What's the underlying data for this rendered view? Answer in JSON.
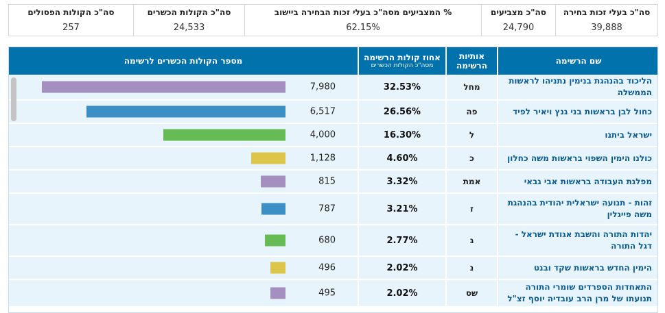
{
  "summary": [
    {
      "label": "סה\"כ בעלי זכות בחירה",
      "value": "39,888"
    },
    {
      "label": "סה\"כ מצביעים",
      "value": "24,790"
    },
    {
      "label": "% המצביעים מסה\"כ בעלי זכות הבחירה ביישוב",
      "value": "62.15%"
    },
    {
      "label": "סה\"כ הקולות הכשרים",
      "value": "24,533"
    },
    {
      "label": "סה\"כ הקולות הפסולים",
      "value": "257"
    }
  ],
  "table": {
    "headers": {
      "name": "שם הרשימה",
      "letters": "אותיות הרשימה",
      "percent": "אחוז קולות הרשימה",
      "percent_sub": "מסה\"כ הקולות הכשרים",
      "votes": "מספר הקולות הכשרים לרשימה"
    },
    "max_votes": 7980,
    "rows": [
      {
        "name": "הליכוד בהנהגת בנימין נתניהו לראשות הממשלה",
        "letters": "מחל",
        "percent": "32.53%",
        "votes": "7,980",
        "votes_value": 7980,
        "color": "#a58fc0"
      },
      {
        "name": "כחול לבן בראשות בני גנץ ויאיר לפיד",
        "letters": "פה",
        "percent": "26.56%",
        "votes": "6,517",
        "votes_value": 6517,
        "color": "#3c8fc6"
      },
      {
        "name": "ישראל ביתנו",
        "letters": "ל",
        "percent": "16.30%",
        "votes": "4,000",
        "votes_value": 4000,
        "color": "#66bb55"
      },
      {
        "name": "כולנו הימין השפוי בראשות משה כחלון",
        "letters": "כ",
        "percent": "4.60%",
        "votes": "1,128",
        "votes_value": 1128,
        "color": "#ddc54a"
      },
      {
        "name": "מפלגת העבודה בראשות אבי גבאי",
        "letters": "אמת",
        "percent": "3.32%",
        "votes": "815",
        "votes_value": 815,
        "color": "#a58fc0"
      },
      {
        "name": "זהות - תנועה ישראלית יהודית בהנהגת משה פייגלין",
        "letters": "ז",
        "percent": "3.21%",
        "votes": "787",
        "votes_value": 787,
        "color": "#3c8fc6"
      },
      {
        "name": "יהדות התורה והשבת אגודת ישראל - דגל התורה",
        "letters": "ג",
        "percent": "2.77%",
        "votes": "680",
        "votes_value": 680,
        "color": "#66bb55"
      },
      {
        "name": "הימין החדש בראשות שקד ובנט",
        "letters": "נ",
        "percent": "2.02%",
        "votes": "496",
        "votes_value": 496,
        "color": "#ddc54a"
      },
      {
        "name": "התאחדות הספרדים שומרי התורה תנועתו של מרן הרב עובדיה יוסף זצ\"ל",
        "letters": "שס",
        "percent": "2.02%",
        "votes": "495",
        "votes_value": 495,
        "color": "#a58fc0"
      }
    ]
  }
}
